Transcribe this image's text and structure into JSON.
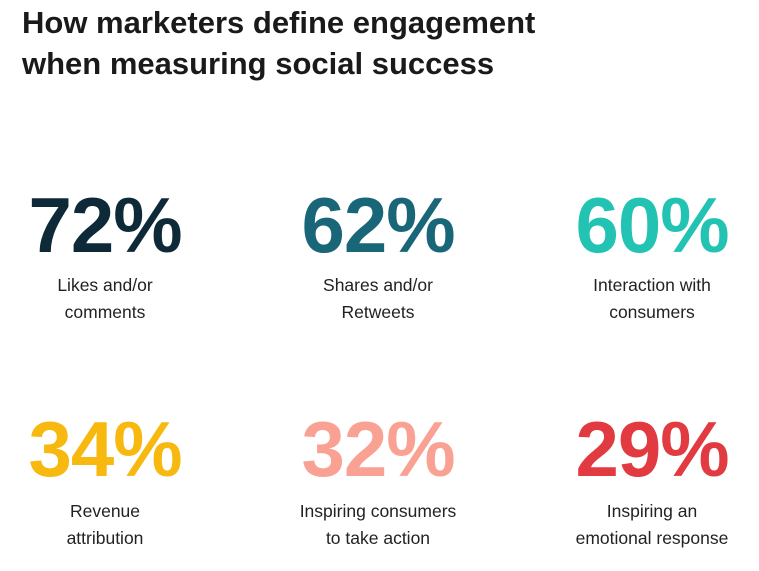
{
  "header": {
    "title_lines": [
      "How marketers define engagement",
      "when measuring social success"
    ]
  },
  "stats": [
    {
      "value": "72%",
      "color": "#0e2a38",
      "label_lines": [
        "Likes and/or",
        "comments"
      ]
    },
    {
      "value": "62%",
      "color": "#1a6679",
      "label_lines": [
        "Shares and/or",
        "Retweets"
      ]
    },
    {
      "value": "60%",
      "color": "#22c3b3",
      "label_lines": [
        "Interaction with",
        "consumers"
      ]
    },
    {
      "value": "34%",
      "color": "#f7b90f",
      "label_lines": [
        "Revenue",
        "attribution"
      ]
    },
    {
      "value": "32%",
      "color": "#f9a293",
      "label_lines": [
        "Inspiring consumers",
        "to take action"
      ]
    },
    {
      "value": "29%",
      "color": "#e13a40",
      "label_lines": [
        "Inspiring an",
        "emotional response"
      ]
    }
  ]
}
